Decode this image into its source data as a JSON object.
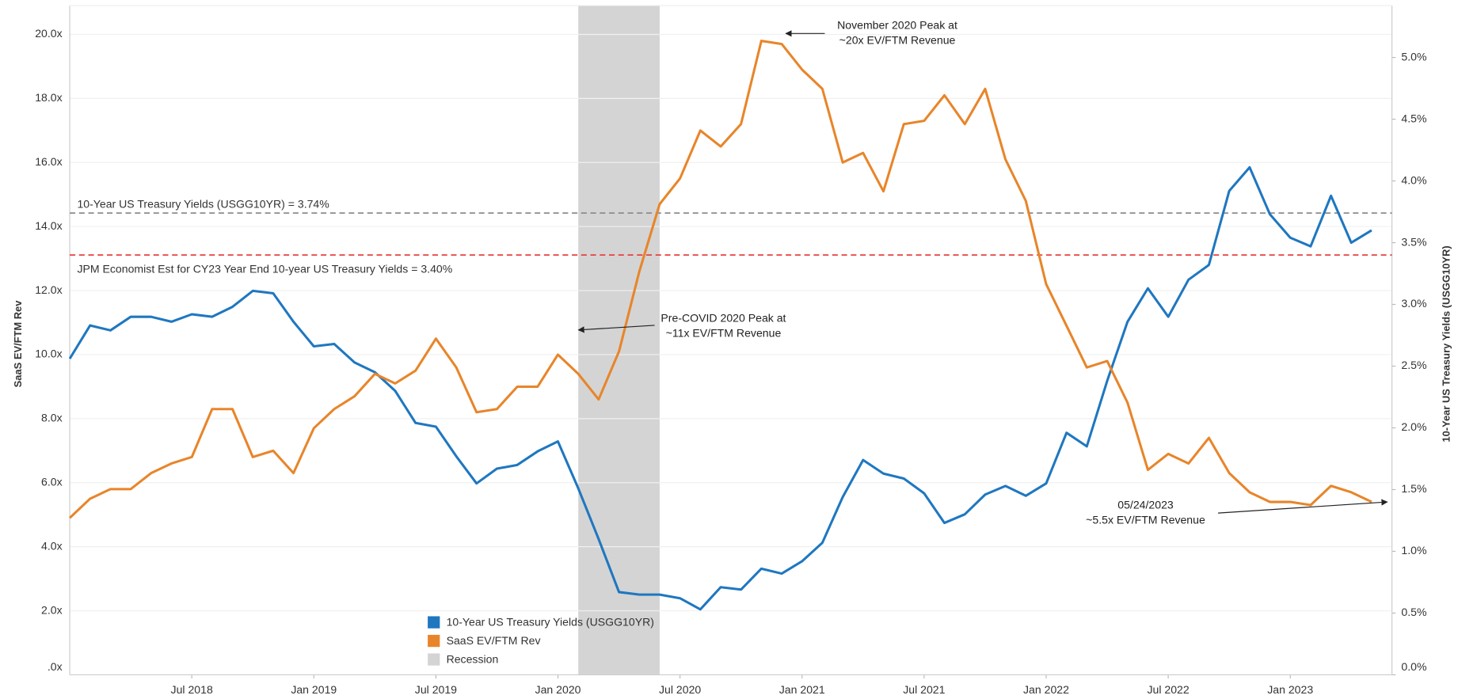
{
  "chart_data": {
    "type": "line",
    "y_label": "SaaS EV/FTM Rev",
    "y2_label": "10-Year US Treasury Yields (USGG10YR)",
    "x": [
      "2018-01",
      "2018-02",
      "2018-03",
      "2018-04",
      "2018-05",
      "2018-06",
      "2018-07",
      "2018-08",
      "2018-09",
      "2018-10",
      "2018-11",
      "2018-12",
      "2019-01",
      "2019-02",
      "2019-03",
      "2019-04",
      "2019-05",
      "2019-06",
      "2019-07",
      "2019-08",
      "2019-09",
      "2019-10",
      "2019-11",
      "2019-12",
      "2020-01",
      "2020-02",
      "2020-03",
      "2020-04",
      "2020-05",
      "2020-06",
      "2020-07",
      "2020-08",
      "2020-09",
      "2020-10",
      "2020-11",
      "2020-12",
      "2021-01",
      "2021-02",
      "2021-03",
      "2021-04",
      "2021-05",
      "2021-06",
      "2021-07",
      "2021-08",
      "2021-09",
      "2021-10",
      "2021-11",
      "2021-12",
      "2022-01",
      "2022-02",
      "2022-03",
      "2022-04",
      "2022-05",
      "2022-06",
      "2022-07",
      "2022-08",
      "2022-09",
      "2022-10",
      "2022-11",
      "2022-12",
      "2023-01",
      "2023-02",
      "2023-03",
      "2023-04",
      "2023-05"
    ],
    "xlim": [
      "2018-01",
      "2023-06"
    ],
    "xticks": [
      {
        "value": "2018-07",
        "label": "Jul 2018"
      },
      {
        "value": "2019-01",
        "label": "Jan 2019"
      },
      {
        "value": "2019-07",
        "label": "Jul 2019"
      },
      {
        "value": "2020-01",
        "label": "Jan 2020"
      },
      {
        "value": "2020-07",
        "label": "Jul 2020"
      },
      {
        "value": "2021-01",
        "label": "Jan 2021"
      },
      {
        "value": "2021-07",
        "label": "Jul 2021"
      },
      {
        "value": "2022-01",
        "label": "Jan 2022"
      },
      {
        "value": "2022-07",
        "label": "Jul 2022"
      },
      {
        "value": "2023-01",
        "label": "Jan 2023"
      }
    ],
    "ylim": [
      0,
      20.9
    ],
    "yticks": [
      {
        "value": 0,
        "label": ".0x"
      },
      {
        "value": 2,
        "label": "2.0x"
      },
      {
        "value": 4,
        "label": "4.0x"
      },
      {
        "value": 6,
        "label": "6.0x"
      },
      {
        "value": 8,
        "label": "8.0x"
      },
      {
        "value": 10,
        "label": "10.0x"
      },
      {
        "value": 12,
        "label": "12.0x"
      },
      {
        "value": 14,
        "label": "14.0x"
      },
      {
        "value": 16,
        "label": "16.0x"
      },
      {
        "value": 18,
        "label": "18.0x"
      },
      {
        "value": 20,
        "label": "20.0x"
      }
    ],
    "y2lim": [
      0,
      5.42
    ],
    "y2ticks": [
      {
        "value": 0,
        "label": "0.0%"
      },
      {
        "value": 0.5,
        "label": "0.5%"
      },
      {
        "value": 1,
        "label": "1.0%"
      },
      {
        "value": 1.5,
        "label": "1.5%"
      },
      {
        "value": 2,
        "label": "2.0%"
      },
      {
        "value": 2.5,
        "label": "2.5%"
      },
      {
        "value": 3,
        "label": "3.0%"
      },
      {
        "value": 3.5,
        "label": "3.5%"
      },
      {
        "value": 4,
        "label": "4.0%"
      },
      {
        "value": 4.5,
        "label": "4.5%"
      },
      {
        "value": 5,
        "label": "5.0%"
      }
    ],
    "grid": true,
    "series": [
      {
        "name": "10-Year US Treasury Yields (USGG10YR)",
        "color": "#1f77c0",
        "axis": "y2",
        "values": [
          2.56,
          2.83,
          2.79,
          2.9,
          2.9,
          2.86,
          2.92,
          2.9,
          2.98,
          3.11,
          3.09,
          2.86,
          2.66,
          2.68,
          2.53,
          2.45,
          2.3,
          2.04,
          2.01,
          1.77,
          1.55,
          1.67,
          1.7,
          1.81,
          1.89,
          1.51,
          1.1,
          0.67,
          0.65,
          0.65,
          0.62,
          0.53,
          0.71,
          0.69,
          0.86,
          0.82,
          0.92,
          1.07,
          1.44,
          1.74,
          1.63,
          1.59,
          1.47,
          1.23,
          1.3,
          1.46,
          1.53,
          1.45,
          1.55,
          1.96,
          1.85,
          2.38,
          2.86,
          3.13,
          2.9,
          3.2,
          3.32,
          3.92,
          4.11,
          3.73,
          3.54,
          3.47,
          3.88,
          3.5,
          3.6
        ]
      },
      {
        "name": "SaaS EV/FTM Rev",
        "color": "#e8852a",
        "values": [
          4.9,
          5.5,
          5.8,
          5.8,
          6.3,
          6.6,
          6.8,
          8.3,
          8.3,
          6.8,
          7.0,
          6.3,
          7.7,
          8.3,
          8.7,
          9.4,
          9.1,
          9.5,
          10.5,
          9.6,
          8.2,
          8.3,
          9.0,
          9.0,
          10.0,
          9.4,
          8.6,
          10.1,
          12.6,
          14.7,
          15.5,
          17.0,
          16.5,
          17.2,
          19.8,
          19.7,
          18.9,
          18.3,
          16.0,
          16.3,
          15.1,
          17.2,
          17.3,
          18.1,
          17.2,
          18.3,
          16.1,
          14.8,
          12.2,
          10.9,
          9.6,
          9.8,
          8.5,
          6.4,
          6.9,
          6.6,
          7.4,
          6.3,
          5.7,
          5.4,
          5.4,
          5.3,
          5.9,
          5.7,
          5.4
        ]
      }
    ],
    "recession": {
      "name": "Recession",
      "start": "2020-02",
      "end": "2020-06",
      "color": "#d4d4d4"
    },
    "reference_lines": [
      {
        "label": "10-Year US Treasury Yields (USGG10YR) = 3.74%",
        "value": 3.74,
        "axis": "y2",
        "color": "#8c8c8c"
      },
      {
        "label": "JPM Economist Est for CY23 Year End 10-year US Treasury Yields = 3.40%",
        "value": 3.4,
        "axis": "y2",
        "color": "#e84040"
      }
    ],
    "annotations": [
      {
        "lines": [
          "November 2020 Peak at",
          "~20x EV/FTM Revenue"
        ]
      },
      {
        "lines": [
          "Pre-COVID 2020 Peak at",
          "~11x EV/FTM Revenue"
        ]
      },
      {
        "lines": [
          "05/24/2023",
          "~5.5x EV/FTM Revenue"
        ]
      }
    ]
  }
}
